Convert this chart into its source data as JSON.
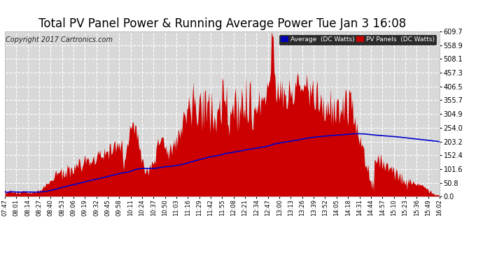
{
  "title": "Total PV Panel Power & Running Average Power Tue Jan 3 16:08",
  "copyright": "Copyright 2017 Cartronics.com",
  "ymin": 0.0,
  "ymax": 609.7,
  "yticks": [
    0.0,
    50.8,
    101.6,
    152.4,
    203.2,
    254.0,
    304.9,
    355.7,
    406.5,
    457.3,
    508.1,
    558.9,
    609.7
  ],
  "legend_avg_label": "Average  (DC Watts)",
  "legend_pv_label": "PV Panels  (DC Watts)",
  "legend_avg_bg": "#0000bb",
  "legend_pv_bg": "#cc0000",
  "bg_color": "#ffffff",
  "plot_bg_color": "#d8d8d8",
  "grid_color": "#ffffff",
  "pv_color": "#cc0000",
  "avg_color": "#0000cc",
  "title_fontsize": 12,
  "copyright_fontsize": 7,
  "xtick_labels": [
    "07:47",
    "08:01",
    "08:14",
    "08:27",
    "08:40",
    "08:53",
    "09:06",
    "09:19",
    "09:32",
    "09:45",
    "09:58",
    "10:11",
    "10:24",
    "10:37",
    "10:50",
    "11:03",
    "11:16",
    "11:29",
    "11:42",
    "11:55",
    "12:08",
    "12:21",
    "12:34",
    "12:47",
    "13:00",
    "13:13",
    "13:26",
    "13:39",
    "13:52",
    "14:05",
    "14:18",
    "14:31",
    "14:44",
    "14:57",
    "15:10",
    "15:23",
    "15:36",
    "15:49",
    "16:02"
  ]
}
